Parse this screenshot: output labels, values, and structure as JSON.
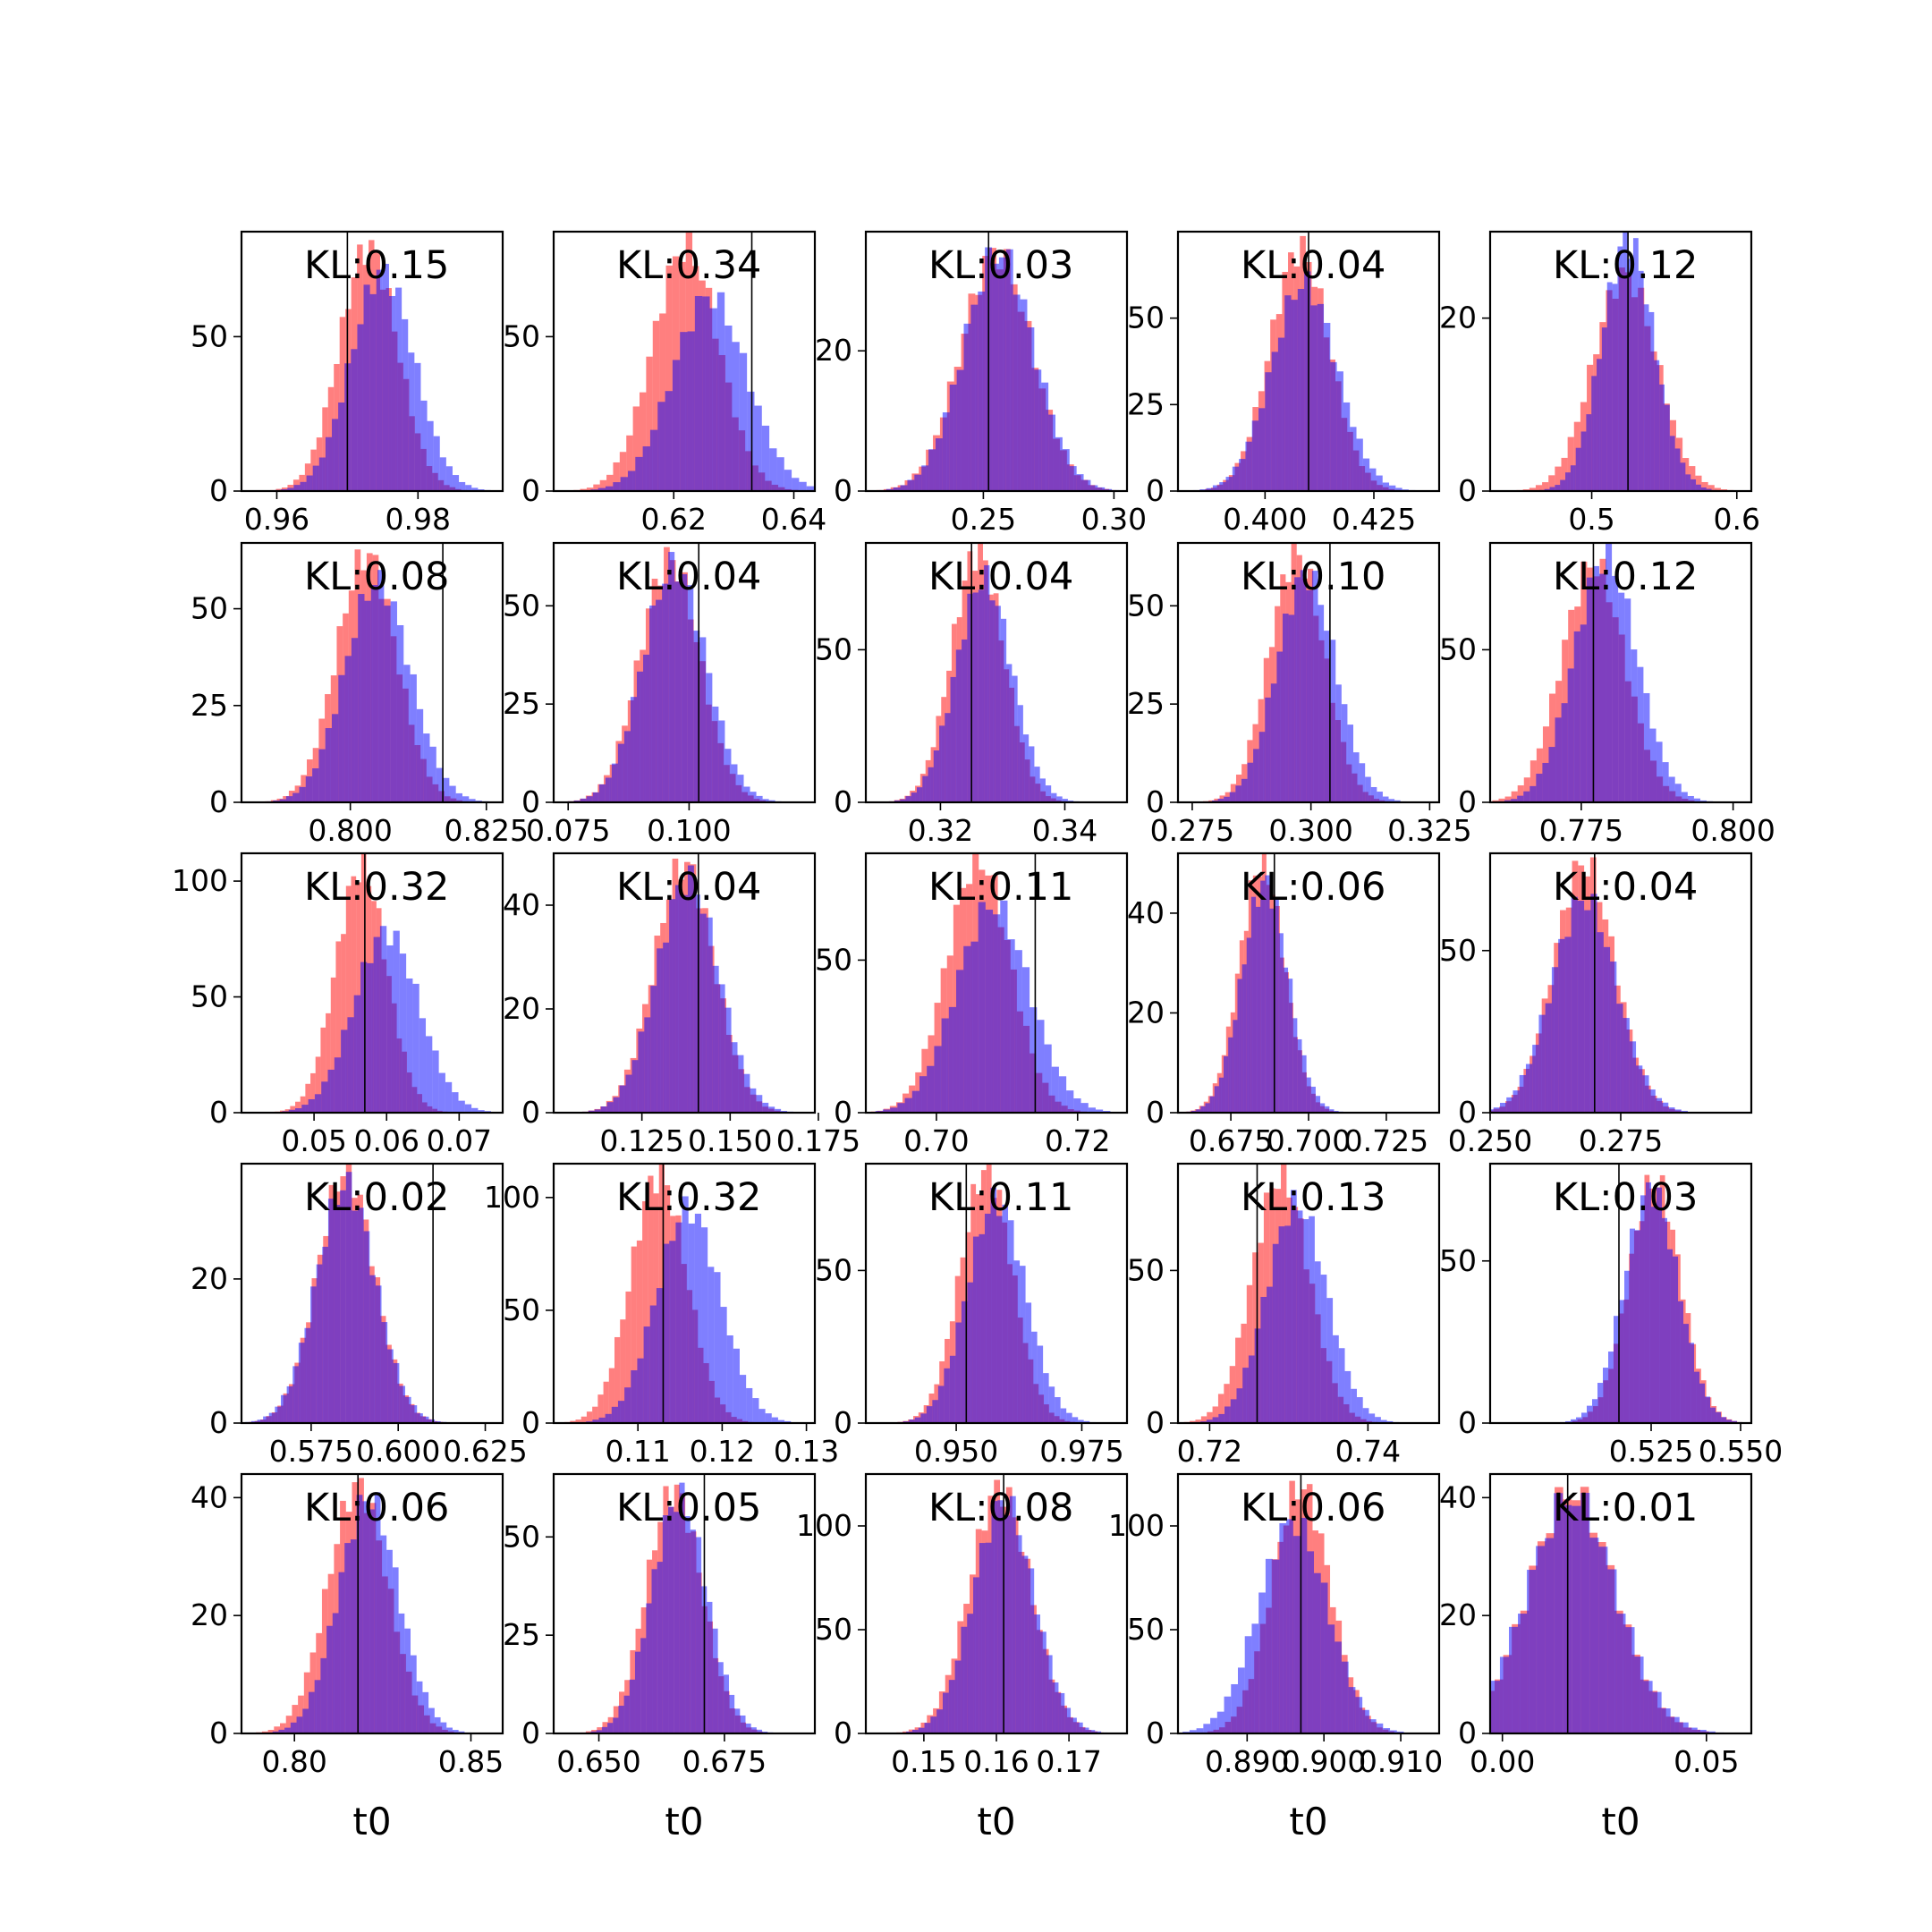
{
  "figure": {
    "xlabel": "t0",
    "colors": {
      "prior": "#ff0000",
      "posterior": "#0000ff",
      "overlap": "#7f3fbf",
      "frame": "#000000"
    }
  },
  "chart_data": [
    {
      "type": "bar",
      "kl_label": "KL:0.15",
      "xlim": [
        0.955,
        0.992
      ],
      "ylim": [
        0,
        84
      ],
      "xticks": [
        0.96,
        0.98
      ],
      "xtick_labels": [
        "0.96",
        "0.98"
      ],
      "yticks": [
        0,
        50
      ],
      "ytick_labels": [
        "0",
        "50"
      ],
      "truth": 0.97,
      "prior": {
        "mean": 0.973,
        "sd": 0.0041,
        "peak": 79
      },
      "posterior": {
        "mean": 0.975,
        "sd": 0.0045,
        "peak": 71
      }
    },
    {
      "type": "bar",
      "kl_label": "KL:0.34",
      "xlim": [
        0.6,
        0.6435
      ],
      "ylim": [
        0,
        84
      ],
      "xticks": [
        0.62,
        0.64
      ],
      "xtick_labels": [
        "0.62",
        "0.64"
      ],
      "yticks": [
        0,
        50
      ],
      "ytick_labels": [
        "0",
        "50"
      ],
      "truth": 0.633,
      "prior": {
        "mean": 0.622,
        "sd": 0.0055,
        "peak": 79
      },
      "posterior": {
        "mean": 0.626,
        "sd": 0.0062,
        "peak": 63
      }
    },
    {
      "type": "bar",
      "kl_label": "KL:0.03",
      "xlim": [
        0.205,
        0.305
      ],
      "ylim": [
        0,
        37
      ],
      "xticks": [
        0.25,
        0.3
      ],
      "xtick_labels": [
        "0.25",
        "0.30"
      ],
      "yticks": [
        0,
        20
      ],
      "ytick_labels": [
        "0",
        "20"
      ],
      "truth": 0.252,
      "prior": {
        "mean": 0.255,
        "sd": 0.0135,
        "peak": 34
      },
      "posterior": {
        "mean": 0.256,
        "sd": 0.0135,
        "peak": 34
      }
    },
    {
      "type": "bar",
      "kl_label": "KL:0.04",
      "xlim": [
        0.38,
        0.44
      ],
      "ylim": [
        0,
        75
      ],
      "xticks": [
        0.4,
        0.425
      ],
      "xtick_labels": [
        "0.400",
        "0.425"
      ],
      "yticks": [
        0,
        25,
        50
      ],
      "ytick_labels": [
        "0",
        "25",
        "50"
      ],
      "truth": 0.41,
      "prior": {
        "mean": 0.408,
        "sd": 0.0068,
        "peak": 70
      },
      "posterior": {
        "mean": 0.409,
        "sd": 0.0075,
        "peak": 60
      }
    },
    {
      "type": "bar",
      "kl_label": "KL:0.12",
      "xlim": [
        0.43,
        0.61
      ],
      "ylim": [
        0,
        30
      ],
      "xticks": [
        0.5,
        0.6
      ],
      "xtick_labels": [
        "0.5",
        "0.6"
      ],
      "yticks": [
        0,
        20
      ],
      "ytick_labels": [
        "0",
        "20"
      ],
      "truth": 0.525,
      "prior": {
        "mean": 0.523,
        "sd": 0.022,
        "peak": 25
      },
      "posterior": {
        "mean": 0.525,
        "sd": 0.018,
        "peak": 29
      }
    },
    {
      "type": "bar",
      "kl_label": "KL:0.08",
      "xlim": [
        0.78,
        0.828
      ],
      "ylim": [
        0,
        67
      ],
      "xticks": [
        0.8,
        0.825
      ],
      "xtick_labels": [
        "0.800",
        "0.825"
      ],
      "yticks": [
        0,
        25,
        50
      ],
      "ytick_labels": [
        "0",
        "25",
        "50"
      ],
      "truth": 0.817,
      "prior": {
        "mean": 0.803,
        "sd": 0.0055,
        "peak": 64
      },
      "posterior": {
        "mean": 0.805,
        "sd": 0.006,
        "peak": 57
      }
    },
    {
      "type": "bar",
      "kl_label": "KL:0.04",
      "xlim": [
        0.072,
        0.126
      ],
      "ylim": [
        0,
        66
      ],
      "xticks": [
        0.075,
        0.1
      ],
      "xtick_labels": [
        "0.075",
        "0.100"
      ],
      "yticks": [
        0,
        25,
        50
      ],
      "ytick_labels": [
        "0",
        "25",
        "50"
      ],
      "truth": 0.102,
      "prior": {
        "mean": 0.096,
        "sd": 0.0062,
        "peak": 62
      },
      "posterior": {
        "mean": 0.097,
        "sd": 0.0065,
        "peak": 60
      }
    },
    {
      "type": "bar",
      "kl_label": "KL:0.04",
      "xlim": [
        0.308,
        0.35
      ],
      "ylim": [
        0,
        85
      ],
      "xticks": [
        0.32,
        0.34
      ],
      "xtick_labels": [
        "0.32",
        "0.34"
      ],
      "yticks": [
        0,
        50
      ],
      "ytick_labels": [
        "0",
        "50"
      ],
      "truth": 0.325,
      "prior": {
        "mean": 0.326,
        "sd": 0.0042,
        "peak": 82
      },
      "posterior": {
        "mean": 0.327,
        "sd": 0.0045,
        "peak": 73
      }
    },
    {
      "type": "bar",
      "kl_label": "KL:0.10",
      "xlim": [
        0.272,
        0.327
      ],
      "ylim": [
        0,
        66
      ],
      "xticks": [
        0.275,
        0.3,
        0.325
      ],
      "xtick_labels": [
        "0.275",
        "0.300",
        "0.325"
      ],
      "yticks": [
        0,
        25,
        50
      ],
      "ytick_labels": [
        "0",
        "25",
        "50"
      ],
      "truth": 0.304,
      "prior": {
        "mean": 0.297,
        "sd": 0.0058,
        "peak": 63
      },
      "posterior": {
        "mean": 0.299,
        "sd": 0.0062,
        "peak": 58
      }
    },
    {
      "type": "bar",
      "kl_label": "KL:0.12",
      "xlim": [
        0.76,
        0.803
      ],
      "ylim": [
        0,
        85
      ],
      "xticks": [
        0.775,
        0.8
      ],
      "xtick_labels": [
        "0.775",
        "0.800"
      ],
      "yticks": [
        0,
        50
      ],
      "ytick_labels": [
        "0",
        "50"
      ],
      "truth": 0.777,
      "prior": {
        "mean": 0.777,
        "sd": 0.0052,
        "peak": 78
      },
      "posterior": {
        "mean": 0.779,
        "sd": 0.0052,
        "peak": 80
      }
    },
    {
      "type": "bar",
      "kl_label": "KL:0.32",
      "xlim": [
        0.04,
        0.076
      ],
      "ylim": [
        0,
        112
      ],
      "xticks": [
        0.05,
        0.06,
        0.07
      ],
      "xtick_labels": [
        "0.05",
        "0.06",
        "0.07"
      ],
      "yticks": [
        0,
        50,
        100
      ],
      "ytick_labels": [
        "0",
        "50",
        "100"
      ],
      "truth": 0.057,
      "prior": {
        "mean": 0.0565,
        "sd": 0.0035,
        "peak": 106
      },
      "posterior": {
        "mean": 0.06,
        "sd": 0.0045,
        "peak": 78
      }
    },
    {
      "type": "bar",
      "kl_label": "KL:0.04",
      "xlim": [
        0.1,
        0.174
      ],
      "ylim": [
        0,
        50
      ],
      "xticks": [
        0.125,
        0.15,
        0.175
      ],
      "xtick_labels": [
        "0.125",
        "0.150",
        "0.175"
      ],
      "yticks": [
        0,
        20,
        40
      ],
      "ytick_labels": [
        "0",
        "20",
        "40"
      ],
      "truth": 0.141,
      "prior": {
        "mean": 0.137,
        "sd": 0.0085,
        "peak": 48
      },
      "posterior": {
        "mean": 0.138,
        "sd": 0.0088,
        "peak": 45
      }
    },
    {
      "type": "bar",
      "kl_label": "KL:0.11",
      "xlim": [
        0.69,
        0.727
      ],
      "ylim": [
        0,
        85
      ],
      "xticks": [
        0.7,
        0.72
      ],
      "xtick_labels": [
        "0.70",
        "0.72"
      ],
      "yticks": [
        0,
        50
      ],
      "ytick_labels": [
        "0",
        "50"
      ],
      "truth": 0.714,
      "prior": {
        "mean": 0.706,
        "sd": 0.0045,
        "peak": 83
      },
      "posterior": {
        "mean": 0.708,
        "sd": 0.0052,
        "peak": 68
      }
    },
    {
      "type": "bar",
      "kl_label": "KL:0.06",
      "xlim": [
        0.658,
        0.742
      ],
      "ylim": [
        0,
        52
      ],
      "xticks": [
        0.675,
        0.7,
        0.725
      ],
      "xtick_labels": [
        "0.675",
        "0.700",
        "0.725"
      ],
      "yticks": [
        0,
        20,
        40
      ],
      "ytick_labels": [
        "0",
        "20",
        "40"
      ],
      "truth": 0.689,
      "prior": {
        "mean": 0.685,
        "sd": 0.0072,
        "peak": 50
      },
      "posterior": {
        "mean": 0.686,
        "sd": 0.0074,
        "peak": 46
      }
    },
    {
      "type": "bar",
      "kl_label": "KL:0.04",
      "xlim": [
        0.25,
        0.3
      ],
      "ylim": [
        0,
        80
      ],
      "xticks": [
        0.25,
        0.275
      ],
      "xtick_labels": [
        "0.250",
        "0.275"
      ],
      "yticks": [
        0,
        50
      ],
      "ytick_labels": [
        "0",
        "50"
      ],
      "truth": 0.27,
      "prior": {
        "mean": 0.268,
        "sd": 0.0058,
        "peak": 77
      },
      "posterior": {
        "mean": 0.268,
        "sd": 0.0062,
        "peak": 66
      }
    },
    {
      "type": "bar",
      "kl_label": "KL:0.02",
      "xlim": [
        0.555,
        0.63
      ],
      "ylim": [
        0,
        36
      ],
      "xticks": [
        0.575,
        0.6,
        0.625
      ],
      "xtick_labels": [
        "0.575",
        "0.600",
        "0.625"
      ],
      "yticks": [
        0,
        20
      ],
      "ytick_labels": [
        "0",
        "20"
      ],
      "truth": 0.61,
      "prior": {
        "mean": 0.585,
        "sd": 0.0082,
        "peak": 35
      },
      "posterior": {
        "mean": 0.585,
        "sd": 0.0085,
        "peak": 33
      }
    },
    {
      "type": "bar",
      "kl_label": "KL:0.32",
      "xlim": [
        0.1,
        0.131
      ],
      "ylim": [
        0,
        115
      ],
      "xticks": [
        0.11,
        0.12,
        0.13
      ],
      "xtick_labels": [
        "0.11",
        "0.12",
        "0.13"
      ],
      "yticks": [
        0,
        50,
        100
      ],
      "ytick_labels": [
        "0",
        "50",
        "100"
      ],
      "truth": 0.113,
      "prior": {
        "mean": 0.1125,
        "sd": 0.0033,
        "peak": 110
      },
      "posterior": {
        "mean": 0.116,
        "sd": 0.0038,
        "peak": 95
      }
    },
    {
      "type": "bar",
      "kl_label": "KL:0.11",
      "xlim": [
        0.932,
        0.984
      ],
      "ylim": [
        0,
        85
      ],
      "xticks": [
        0.95,
        0.975
      ],
      "xtick_labels": [
        "0.950",
        "0.975"
      ],
      "yticks": [
        0,
        50
      ],
      "ytick_labels": [
        "0",
        "50"
      ],
      "truth": 0.952,
      "prior": {
        "mean": 0.956,
        "sd": 0.0052,
        "peak": 83
      },
      "posterior": {
        "mean": 0.958,
        "sd": 0.0058,
        "peak": 73
      }
    },
    {
      "type": "bar",
      "kl_label": "KL:0.13",
      "xlim": [
        0.716,
        0.749
      ],
      "ylim": [
        0,
        85
      ],
      "xticks": [
        0.72,
        0.74
      ],
      "xtick_labels": [
        "0.72",
        "0.74"
      ],
      "yticks": [
        0,
        50
      ],
      "ytick_labels": [
        "0",
        "50"
      ],
      "truth": 0.726,
      "prior": {
        "mean": 0.729,
        "sd": 0.0036,
        "peak": 81
      },
      "posterior": {
        "mean": 0.731,
        "sd": 0.0038,
        "peak": 72
      }
    },
    {
      "type": "bar",
      "kl_label": "KL:0.03",
      "xlim": [
        0.48,
        0.553
      ],
      "ylim": [
        0,
        80
      ],
      "xticks": [
        0.525,
        0.55
      ],
      "xtick_labels": [
        "0.525",
        "0.550"
      ],
      "yticks": [
        0,
        50
      ],
      "ytick_labels": [
        "0",
        "50"
      ],
      "truth": 0.516,
      "prior": {
        "mean": 0.526,
        "sd": 0.0072,
        "peak": 75
      },
      "posterior": {
        "mean": 0.525,
        "sd": 0.0075,
        "peak": 72
      }
    },
    {
      "type": "bar",
      "kl_label": "KL:0.06",
      "xlim": [
        0.785,
        0.859
      ],
      "ylim": [
        0,
        44
      ],
      "xticks": [
        0.8,
        0.85
      ],
      "xtick_labels": [
        "0.80",
        "0.85"
      ],
      "yticks": [
        0,
        20,
        40
      ],
      "ytick_labels": [
        "0",
        "20",
        "40"
      ],
      "truth": 0.818,
      "prior": {
        "mean": 0.818,
        "sd": 0.0085,
        "peak": 42
      },
      "posterior": {
        "mean": 0.821,
        "sd": 0.0085,
        "peak": 40
      }
    },
    {
      "type": "bar",
      "kl_label": "KL:0.05",
      "xlim": [
        0.641,
        0.693
      ],
      "ylim": [
        0,
        66
      ],
      "xticks": [
        0.65,
        0.675
      ],
      "xtick_labels": [
        "0.650",
        "0.675"
      ],
      "yticks": [
        0,
        25,
        50
      ],
      "ytick_labels": [
        "0",
        "25",
        "50"
      ],
      "truth": 0.671,
      "prior": {
        "mean": 0.665,
        "sd": 0.0055,
        "peak": 62
      },
      "posterior": {
        "mean": 0.666,
        "sd": 0.0055,
        "peak": 60
      }
    },
    {
      "type": "bar",
      "kl_label": "KL:0.08",
      "xlim": [
        0.142,
        0.178
      ],
      "ylim": [
        0,
        125
      ],
      "xticks": [
        0.15,
        0.16,
        0.17
      ],
      "xtick_labels": [
        "0.15",
        "0.16",
        "0.17"
      ],
      "yticks": [
        0,
        50,
        100
      ],
      "ytick_labels": [
        "0",
        "50",
        "100"
      ],
      "truth": 0.161,
      "prior": {
        "mean": 0.1605,
        "sd": 0.0042,
        "peak": 118
      },
      "posterior": {
        "mean": 0.161,
        "sd": 0.0042,
        "peak": 112
      }
    },
    {
      "type": "bar",
      "kl_label": "KL:0.06",
      "xlim": [
        0.881,
        0.915
      ],
      "ylim": [
        0,
        125
      ],
      "xticks": [
        0.89,
        0.9,
        0.91
      ],
      "xtick_labels": [
        "0.890",
        "0.900",
        "0.910"
      ],
      "yticks": [
        0,
        50,
        100
      ],
      "ytick_labels": [
        "0",
        "50",
        "100"
      ],
      "truth": 0.897,
      "prior": {
        "mean": 0.897,
        "sd": 0.0038,
        "peak": 119
      },
      "posterior": {
        "mean": 0.896,
        "sd": 0.0045,
        "peak": 102
      }
    },
    {
      "type": "bar",
      "kl_label": "KL:0.01",
      "xlim": [
        -0.003,
        0.061
      ],
      "ylim": [
        0,
        44
      ],
      "xticks": [
        0,
        0.05
      ],
      "xtick_labels": [
        "0.00",
        "0.05"
      ],
      "yticks": [
        0,
        20,
        40
      ],
      "ytick_labels": [
        "0",
        "20",
        "40"
      ],
      "truth": 0.016,
      "prior": {
        "mean": 0.017,
        "sd": 0.0105,
        "peak": 41
      },
      "posterior": {
        "mean": 0.017,
        "sd": 0.011,
        "peak": 40
      }
    }
  ]
}
